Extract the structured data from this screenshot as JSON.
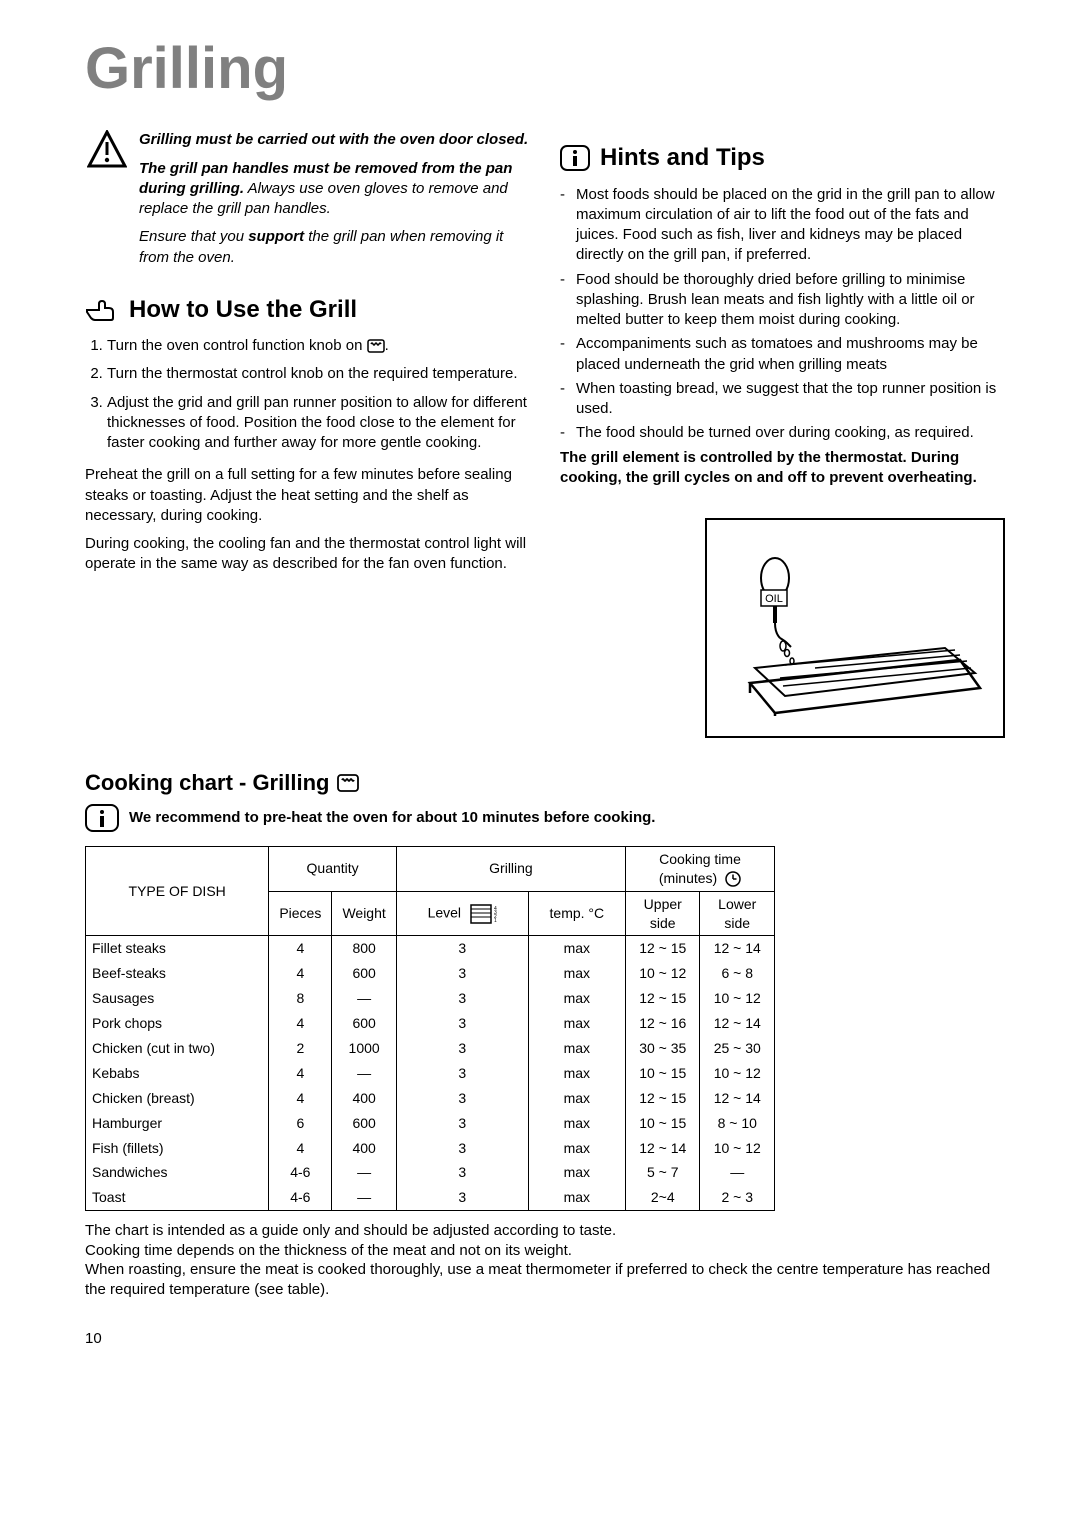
{
  "page_title": "Grilling",
  "warning": {
    "line1": "Grilling must be carried out with the oven door closed.",
    "line2a": "The grill pan handles must be removed from the pan during grilling.",
    "line2b": " Always use oven gloves to remove and replace the grill pan handles.",
    "line3a": "Ensure that you ",
    "line3b": "support",
    "line3c": " the grill pan when removing it from the oven."
  },
  "how_to_use": {
    "heading": "How to Use the Grill",
    "steps": [
      "Turn the oven control function knob on ",
      "Turn the thermostat control knob on the required temperature.",
      "Adjust the grid and grill pan runner position to allow for different thicknesses of food. Position the food close to the element for faster cooking and further away for more gentle cooking."
    ],
    "p1": "Preheat the grill on a full setting  for a  few minutes before sealing steaks or toasting. Adjust the heat setting and the shelf as necessary, during cooking.",
    "p2": "During cooking, the cooling fan and the thermostat control light will operate in the same way as described for the fan oven function."
  },
  "hints": {
    "heading": "Hints and Tips",
    "items": [
      "Most foods should be placed on the grid in the grill pan to allow maximum circulation of air to lift the food out of the fats and juices. Food such as fish, liver and kidneys may be placed directly on the grill pan, if preferred.",
      "Food should be thoroughly dried before grilling to minimise splashing. Brush lean meats and fish lightly with a little oil or melted butter to keep them moist during cooking.",
      "Accompaniments such as tomatoes and mushrooms may be placed underneath the grid when grilling meats",
      "When toasting bread, we suggest that the top runner position is used.",
      "The food should be turned over during cooking, as required."
    ],
    "footer": "The grill element is controlled by the thermostat. During cooking, the grill cycles on and off to prevent overheating."
  },
  "chart": {
    "title": "Cooking chart - Grilling",
    "note": "We recommend to pre-heat the oven for about 10 minutes before cooking.",
    "headers": {
      "type": "TYPE OF DISH",
      "quantity": "Quantity",
      "grilling": "Grilling",
      "cooktime": "Cooking time (minutes)",
      "pieces": "Pieces",
      "weight": "Weight",
      "level": "Level",
      "temp": "temp. °C",
      "upper": "Upper side",
      "lower": "Lower side"
    },
    "rows": [
      {
        "dish": "Fillet steaks",
        "pieces": "4",
        "weight": "800",
        "level": "3",
        "temp": "max",
        "upper": "12 ~ 15",
        "lower": "12 ~ 14"
      },
      {
        "dish": "Beef-steaks",
        "pieces": "4",
        "weight": "600",
        "level": "3",
        "temp": "max",
        "upper": "10 ~ 12",
        "lower": "6 ~ 8"
      },
      {
        "dish": "Sausages",
        "pieces": "8",
        "weight": "—",
        "level": "3",
        "temp": "max",
        "upper": "12 ~ 15",
        "lower": "10 ~ 12"
      },
      {
        "dish": "Pork chops",
        "pieces": "4",
        "weight": "600",
        "level": "3",
        "temp": "max",
        "upper": "12 ~ 16",
        "lower": "12 ~ 14"
      },
      {
        "dish": "Chicken (cut in two)",
        "pieces": "2",
        "weight": "1000",
        "level": "3",
        "temp": "max",
        "upper": "30 ~ 35",
        "lower": "25 ~ 30"
      },
      {
        "dish": "Kebabs",
        "pieces": "4",
        "weight": "—",
        "level": "3",
        "temp": "max",
        "upper": "10 ~ 15",
        "lower": "10 ~ 12"
      },
      {
        "dish": "Chicken (breast)",
        "pieces": "4",
        "weight": "400",
        "level": "3",
        "temp": "max",
        "upper": "12 ~ 15",
        "lower": "12 ~ 14"
      },
      {
        "dish": "Hamburger",
        "pieces": "6",
        "weight": "600",
        "level": "3",
        "temp": "max",
        "upper": "10 ~ 15",
        "lower": "8 ~ 10"
      },
      {
        "dish": "Fish (fillets)",
        "pieces": "4",
        "weight": "400",
        "level": "3",
        "temp": "max",
        "upper": "12 ~ 14",
        "lower": "10 ~ 12"
      },
      {
        "dish": "Sandwiches",
        "pieces": "4-6",
        "weight": "—",
        "level": "3",
        "temp": "max",
        "upper": "5 ~ 7",
        "lower": "—"
      },
      {
        "dish": "Toast",
        "pieces": "4-6",
        "weight": "—",
        "level": "3",
        "temp": "max",
        "upper": "2~4",
        "lower": "2 ~ 3"
      }
    ]
  },
  "footer_notes": {
    "n1": "The chart is intended as a guide only and should be adjusted according to taste.",
    "n2": "Cooking time depends on the thickness of the meat and not on its weight.",
    "n3": "When roasting, ensure the meat is cooked thoroughly, use a meat thermometer if preferred to check the centre temperature has reached the required temperature (see table)."
  },
  "page_number": "10",
  "illustration_label": "OIL"
}
